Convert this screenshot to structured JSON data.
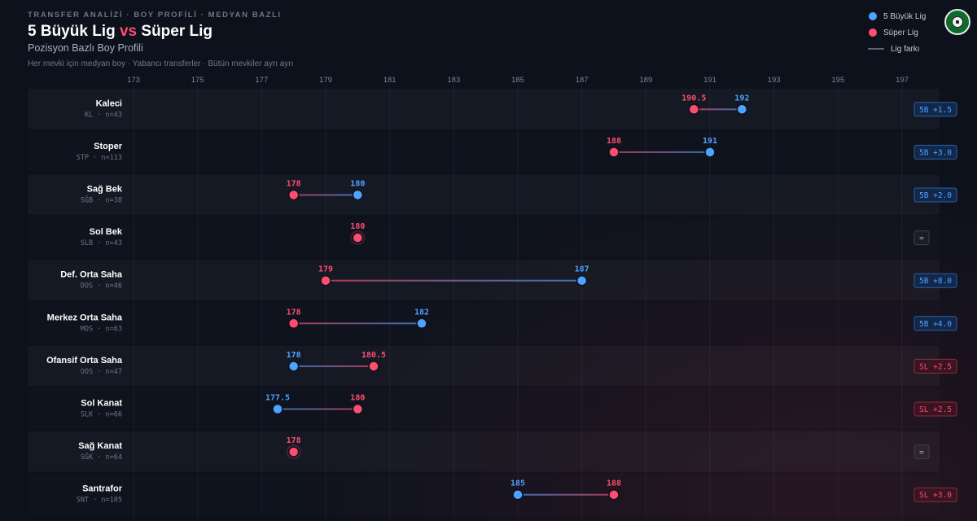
{
  "header": {
    "kicker": "TRANSFER ANALİZİ · BOY PROFİLİ · MEDYAN BAZLI",
    "title_part1": "5 Büyük Lig",
    "title_vs": "vs",
    "title_part2": "Süper Lig",
    "subtitle": "Pozisyon Bazlı Boy Profili",
    "note": "Her mevki için medyan boy · Yabancı transferler · Bütün mevkiler ayrı ayrı"
  },
  "legend": {
    "big5": "5 Büyük Lig",
    "superlig": "Süper Lig",
    "diff": "Lig farkı"
  },
  "colors": {
    "big5": "#4da3ff",
    "superlig": "#ff4d6d",
    "big5_badge_bg": "#12284a",
    "superlig_badge_bg": "#3a1420",
    "neutral_badge": "#9aa3b2"
  },
  "chart_data": {
    "type": "dumbbell",
    "title": "Pozisyon Bazlı Boy Profili",
    "xlim": [
      173,
      197
    ],
    "xticks": [
      "173",
      "175",
      "177",
      "179",
      "181",
      "183",
      "185",
      "187",
      "189",
      "191",
      "193",
      "195",
      "197"
    ],
    "series": [
      {
        "name": "5 Büyük Lig",
        "key": "big5"
      },
      {
        "name": "Süper Lig",
        "key": "superlig"
      }
    ],
    "rows": [
      {
        "name": "Kaleci",
        "code": "KL",
        "n": "n=43",
        "big5": 192,
        "superlig": 190.5,
        "big5_label": "192",
        "superlig_label": "190.5",
        "diff": "5B +1.5",
        "leader": "big5"
      },
      {
        "name": "Stoper",
        "code": "STP",
        "n": "n=113",
        "big5": 191,
        "superlig": 188,
        "big5_label": "191",
        "superlig_label": "188",
        "diff": "5B +3.0",
        "leader": "big5"
      },
      {
        "name": "Sağ Bek",
        "code": "SĞB",
        "n": "n=38",
        "big5": 180,
        "superlig": 178,
        "big5_label": "180",
        "superlig_label": "178",
        "diff": "5B +2.0",
        "leader": "big5"
      },
      {
        "name": "Sol Bek",
        "code": "SLB",
        "n": "n=43",
        "big5": 180,
        "superlig": 180,
        "big5_label": "180",
        "superlig_label": "180",
        "diff": "=",
        "leader": "equal"
      },
      {
        "name": "Def. Orta Saha",
        "code": "DOS",
        "n": "n=46",
        "big5": 187,
        "superlig": 179,
        "big5_label": "187",
        "superlig_label": "179",
        "diff": "5B +8.0",
        "leader": "big5"
      },
      {
        "name": "Merkez Orta Saha",
        "code": "MOS",
        "n": "n=63",
        "big5": 182,
        "superlig": 178,
        "big5_label": "182",
        "superlig_label": "178",
        "diff": "5B +4.0",
        "leader": "big5"
      },
      {
        "name": "Ofansif Orta Saha",
        "code": "OOS",
        "n": "n=47",
        "big5": 178,
        "superlig": 180.5,
        "big5_label": "178",
        "superlig_label": "180.5",
        "diff": "SL +2.5",
        "leader": "superlig"
      },
      {
        "name": "Sol Kanat",
        "code": "SLK",
        "n": "n=66",
        "big5": 177.5,
        "superlig": 180,
        "big5_label": "177.5",
        "superlig_label": "180",
        "diff": "SL +2.5",
        "leader": "superlig"
      },
      {
        "name": "Sağ Kanat",
        "code": "SĞK",
        "n": "n=64",
        "big5": 178,
        "superlig": 178,
        "big5_label": "178",
        "superlig_label": "178",
        "diff": "=",
        "leader": "equal"
      },
      {
        "name": "Santrafor",
        "code": "SNT",
        "n": "n=105",
        "big5": 185,
        "superlig": 188,
        "big5_label": "185",
        "superlig_label": "188",
        "diff": "SL +3.0",
        "leader": "superlig"
      }
    ]
  }
}
